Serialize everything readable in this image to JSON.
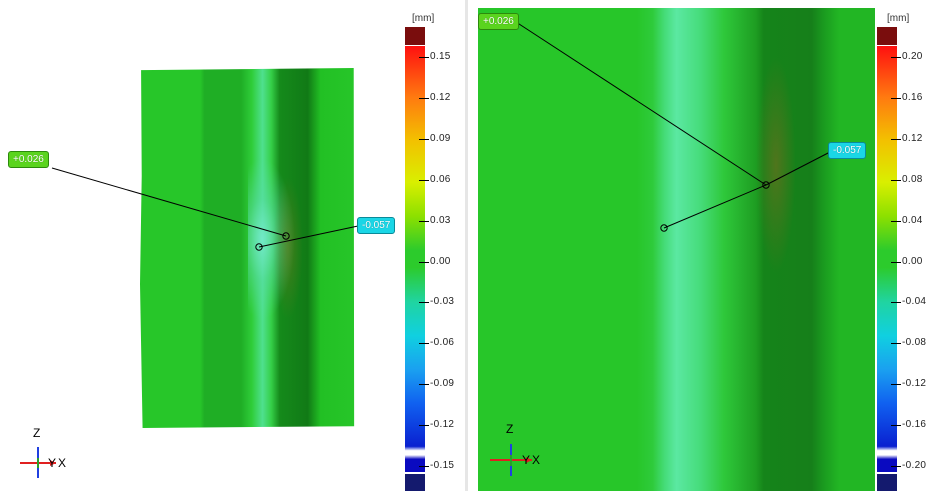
{
  "left_view": {
    "unit": "[mm]",
    "scale_labels": [
      "0.15",
      "0.12",
      "0.09",
      "0.06",
      "0.03",
      "0.00",
      "-0.03",
      "-0.06",
      "-0.09",
      "-0.12",
      "-0.15"
    ],
    "callout_plus": "+0.026",
    "callout_minus": "-0.057",
    "axis_z": "Z",
    "axis_y": "Y",
    "axis_x": "X"
  },
  "right_view": {
    "unit": "[mm]",
    "scale_labels": [
      "0.20",
      "0.16",
      "0.12",
      "0.08",
      "0.04",
      "0.00",
      "-0.04",
      "-0.08",
      "-0.12",
      "-0.16",
      "-0.20"
    ],
    "callout_plus": "+0.026",
    "callout_minus": "-0.057",
    "axis_z": "Z",
    "axis_y": "Y",
    "axis_x": "X"
  },
  "colors": {
    "above_range": "#7a0d0d",
    "below_range": "#141a6e",
    "axis_x": "#e02020",
    "axis_y": "#2aa02a",
    "axis_z": "#2040e0"
  },
  "icons": [
    "coordinate-axes-icon"
  ]
}
